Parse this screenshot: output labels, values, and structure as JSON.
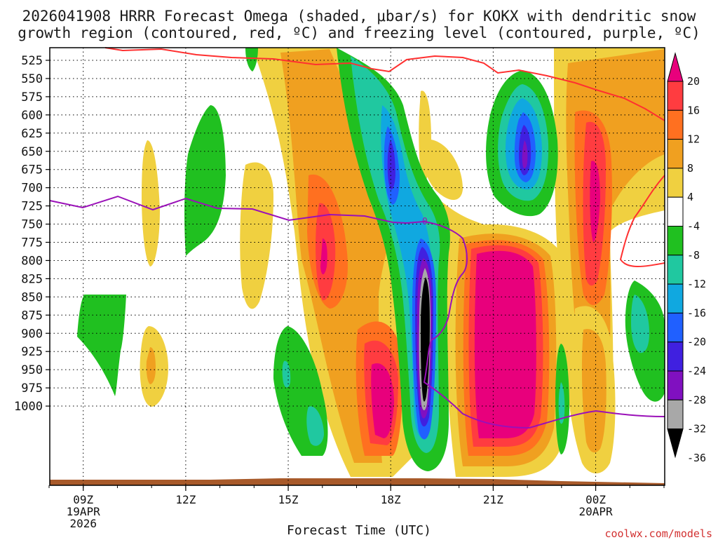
{
  "title_line1": "2026041908 HRRR Forecast Omega (shaded, μbar/s) for KOKX with dendritic snow",
  "title_line2": "growth region (contoured, red, ºC) and freezing level (contoured, purple, ºC)",
  "xlabel": "Forecast Time (UTC)",
  "credit": "coolwx.com/models",
  "chart_data": {
    "type": "time-height",
    "y_ticks": [
      "525",
      "550",
      "575",
      "600",
      "625",
      "650",
      "675",
      "700",
      "725",
      "750",
      "775",
      "800",
      "825",
      "850",
      "875",
      "900",
      "925",
      "950",
      "975",
      "1000"
    ],
    "x_ticks": [
      {
        "hour": 9,
        "label": "09Z",
        "sub1": "19APR",
        "sub2": "2026"
      },
      {
        "hour": 12,
        "label": "12Z",
        "sub1": "",
        "sub2": ""
      },
      {
        "hour": 15,
        "label": "15Z",
        "sub1": "",
        "sub2": ""
      },
      {
        "hour": 18,
        "label": "18Z",
        "sub1": "",
        "sub2": ""
      },
      {
        "hour": 21,
        "label": "21Z",
        "sub1": "",
        "sub2": ""
      },
      {
        "hour": 24,
        "label": "00Z",
        "sub1": "20APR",
        "sub2": ""
      }
    ],
    "x_range_hours": [
      8,
      26
    ],
    "colorbar": {
      "labels": [
        "20",
        "16",
        "12",
        "8",
        "4",
        "-4",
        "-8",
        "-12",
        "-16",
        "-20",
        "-24",
        "-28",
        "-32",
        "-36"
      ],
      "colors": [
        "#e8007c",
        "#ff3c40",
        "#ff7020",
        "#f0a020",
        "#f0d040",
        "#ffffff",
        "#20c020",
        "#20c8a0",
        "#10a8e0",
        "#2060ff",
        "#4020e0",
        "#8010c0",
        "#a8a8a8",
        "#000000"
      ]
    },
    "freezing_level_contour_label": "0",
    "freezing_level_color": "#9a10b8",
    "dgz_color": "#ff3030",
    "ground_color": "#a85a2a"
  }
}
